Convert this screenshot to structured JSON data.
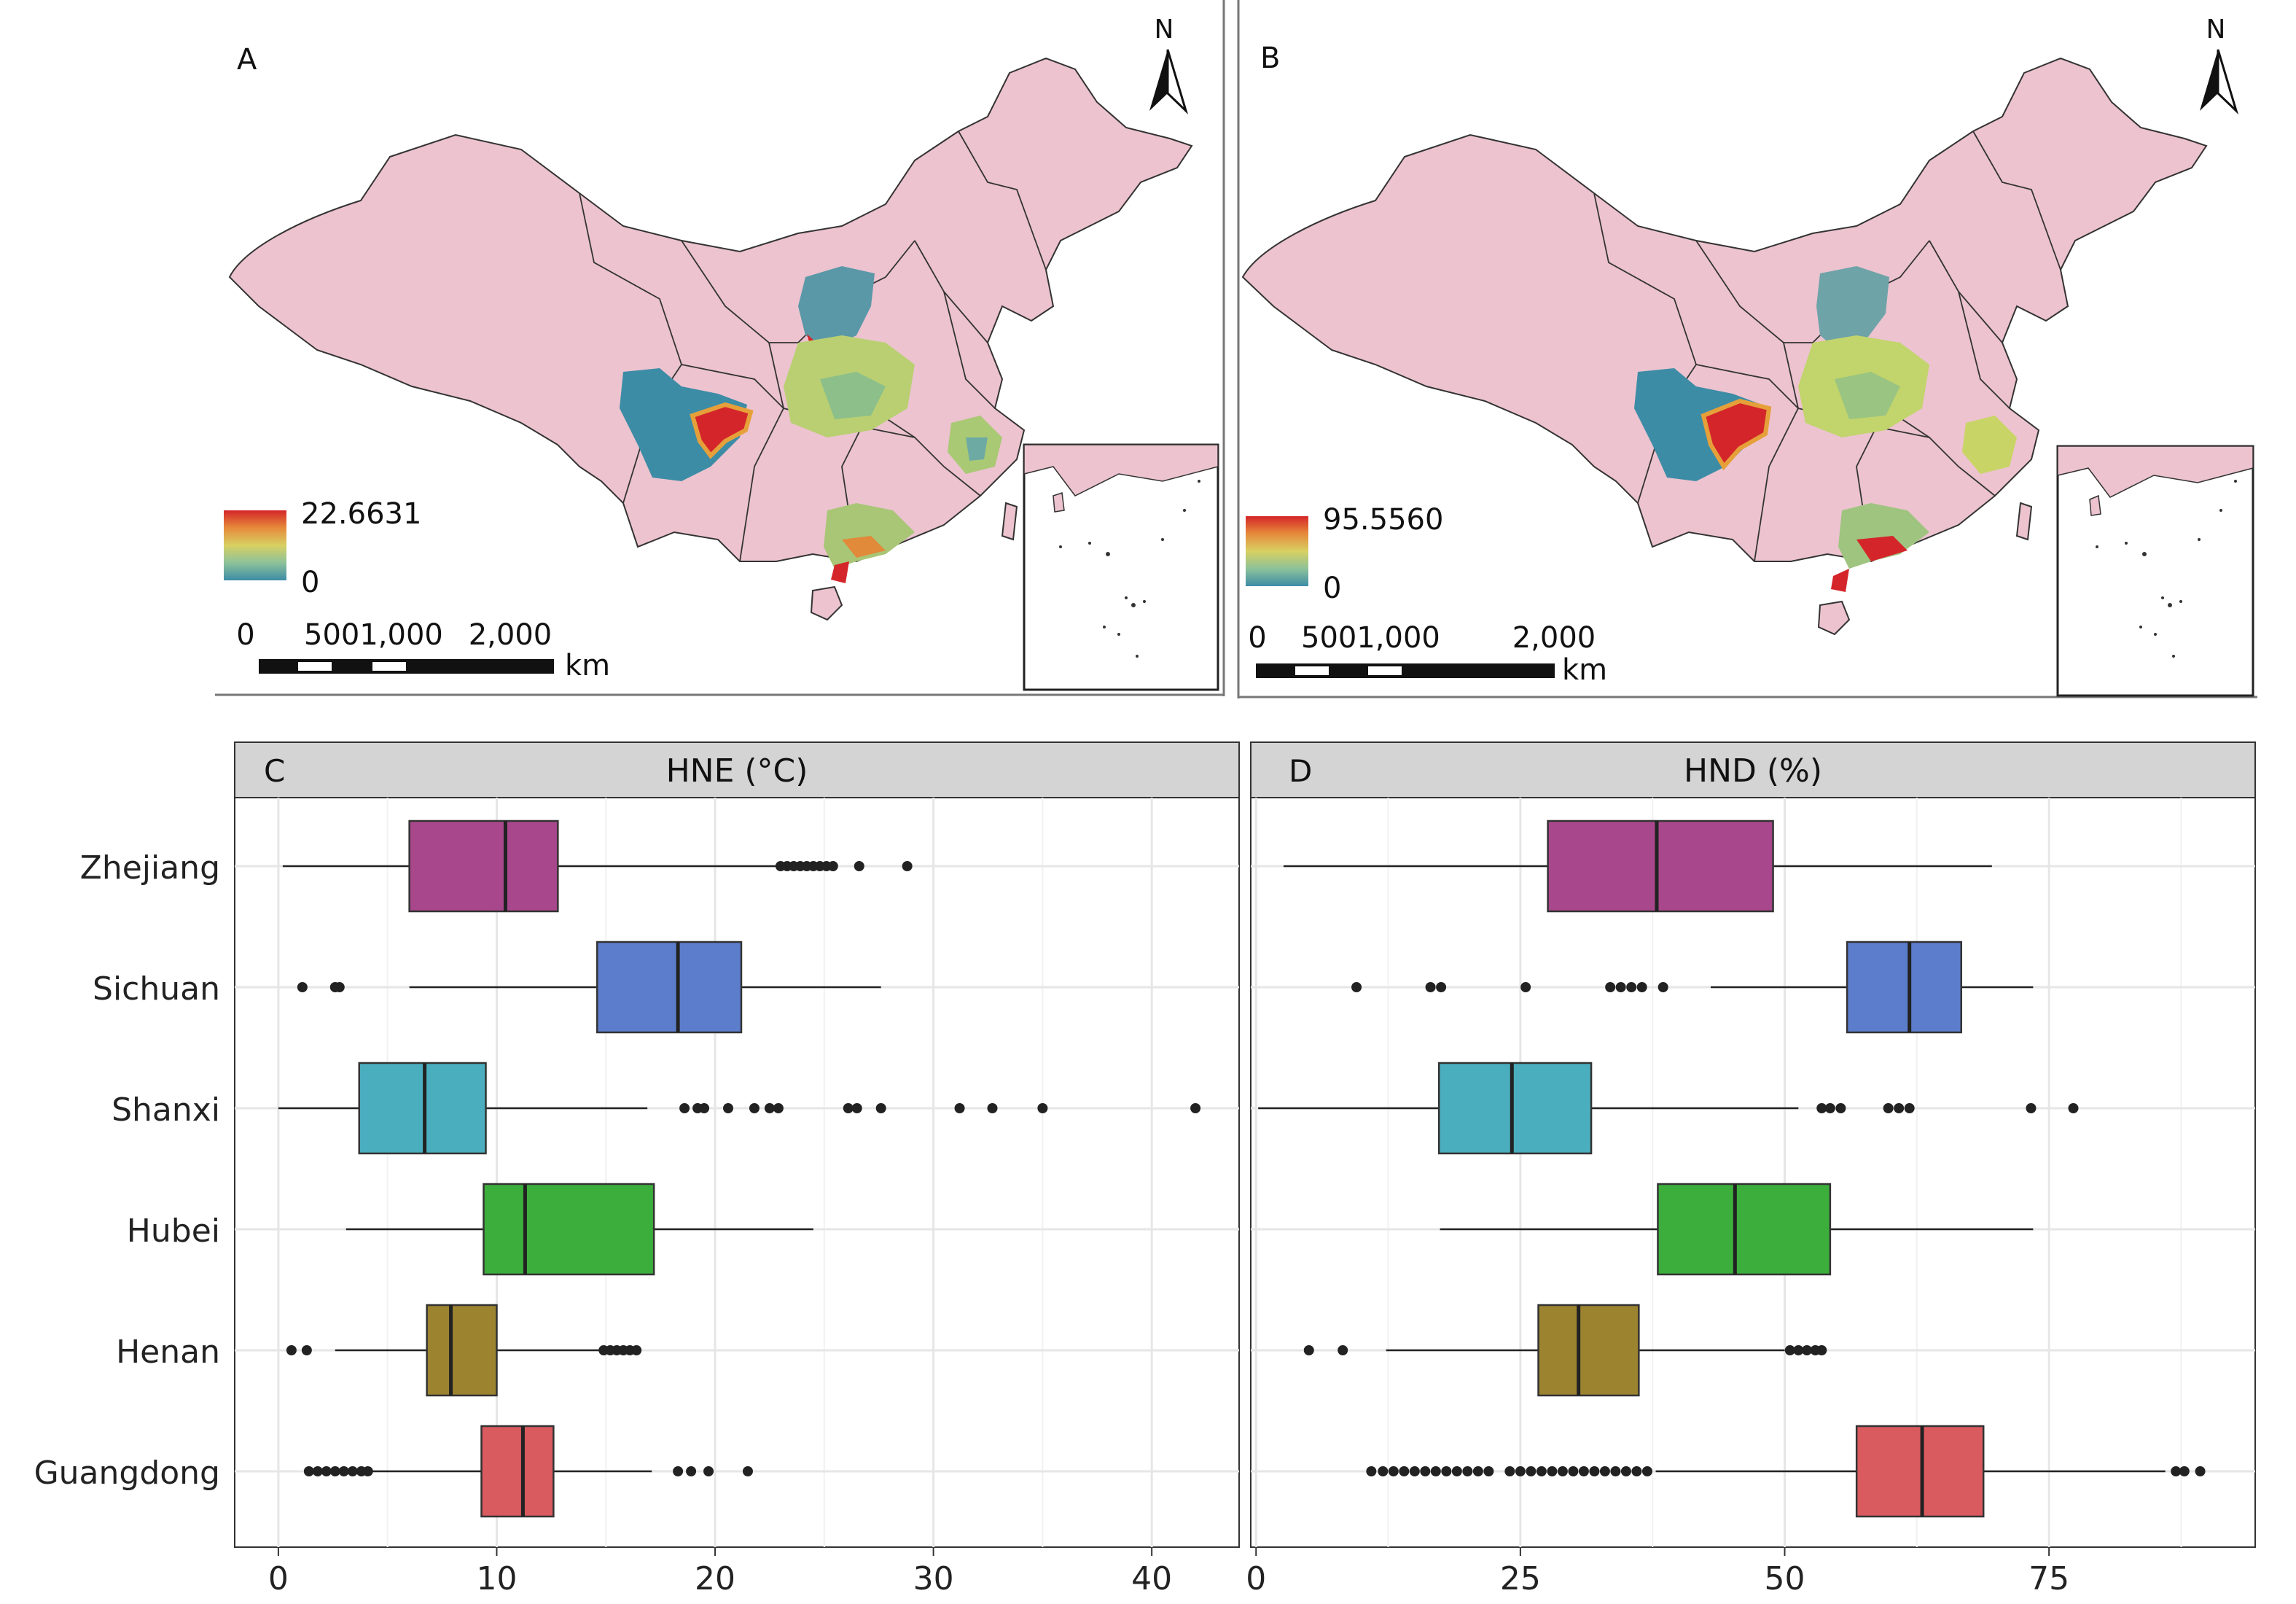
{
  "map_a": {
    "panel_label": "A",
    "legend_max": "22.6631",
    "legend_min": "0",
    "north_label": "N",
    "scale_labels": [
      "0",
      "5001,000",
      "2,000"
    ],
    "scale_unit": "km"
  },
  "map_b": {
    "panel_label": "B",
    "legend_max": "95.5560",
    "legend_min": "0",
    "north_label": "N",
    "scale_labels": [
      "0",
      "5001,000",
      "2,000"
    ],
    "scale_unit": "km"
  },
  "colors": {
    "map_land": "#ecc3cf",
    "map_border": "#333333",
    "heat_low": "#3d8ca6",
    "heat_mid": "#c8d86a",
    "heat_high": "#d4262a",
    "strip_bg": "#d4d4d4",
    "grid": "#e6e6e6"
  },
  "chart_data": [
    {
      "type": "boxplot",
      "panel_label": "C",
      "title": "HNE (°C)",
      "xlim": [
        -2,
        44
      ],
      "x_ticks": [
        0,
        10,
        20,
        30,
        40
      ],
      "grid": true,
      "categories": [
        "Zhejiang",
        "Sichuan",
        "Shanxi",
        "Hubei",
        "Henan",
        "Guangdong"
      ],
      "boxes": [
        {
          "name": "Zhejiang",
          "color": "#a8478b",
          "min": 0.2,
          "q1": 6.0,
          "median": 10.4,
          "q3": 12.8,
          "max": 22.8,
          "outliers": [
            23.0,
            23.3,
            23.6,
            23.9,
            24.2,
            24.5,
            24.8,
            25.1,
            25.4,
            26.6,
            28.8
          ]
        },
        {
          "name": "Sichuan",
          "color": "#5c7dcc",
          "min": 6.0,
          "q1": 14.6,
          "median": 18.3,
          "q3": 21.2,
          "max": 27.6,
          "outliers": [
            1.1,
            2.6,
            2.8
          ]
        },
        {
          "name": "Shanxi",
          "color": "#4aaebe",
          "min": 0.0,
          "q1": 3.7,
          "median": 6.7,
          "q3": 9.5,
          "max": 16.9,
          "outliers": [
            18.6,
            19.2,
            19.5,
            20.6,
            21.8,
            22.5,
            22.9,
            26.1,
            26.5,
            27.6,
            31.2,
            32.7,
            35.0,
            42.0
          ]
        },
        {
          "name": "Hubei",
          "color": "#3cae3c",
          "min": 3.1,
          "q1": 9.4,
          "median": 11.3,
          "q3": 17.2,
          "max": 24.5,
          "outliers": []
        },
        {
          "name": "Henan",
          "color": "#9c8330",
          "min": 2.6,
          "q1": 6.8,
          "median": 7.9,
          "q3": 10.0,
          "max": 14.7,
          "outliers": [
            0.6,
            1.3,
            14.9,
            15.2,
            15.5,
            15.8,
            16.1,
            16.4
          ]
        },
        {
          "name": "Guangdong",
          "color": "#d95a5f",
          "min": 4.3,
          "q1": 9.3,
          "median": 11.2,
          "q3": 12.6,
          "max": 17.1,
          "outliers": [
            1.4,
            1.8,
            2.2,
            2.6,
            3.0,
            3.4,
            3.8,
            4.1,
            18.3,
            18.9,
            19.7,
            21.5
          ]
        }
      ]
    },
    {
      "type": "boxplot",
      "panel_label": "D",
      "title": "HND (%)",
      "xlim": [
        -0.5,
        94.5
      ],
      "x_ticks": [
        0,
        25,
        50,
        75
      ],
      "grid": true,
      "categories": [
        "Zhejiang",
        "Sichuan",
        "Shanxi",
        "Hubei",
        "Henan",
        "Guangdong"
      ],
      "boxes": [
        {
          "name": "Zhejiang",
          "color": "#a8478b",
          "min": 2.6,
          "q1": 27.6,
          "median": 37.9,
          "q3": 48.9,
          "max": 69.6,
          "outliers": []
        },
        {
          "name": "Sichuan",
          "color": "#5c7dcc",
          "min": 43.0,
          "q1": 55.9,
          "median": 61.8,
          "q3": 66.7,
          "max": 73.5,
          "outliers": [
            9.5,
            16.5,
            17.5,
            25.5,
            33.5,
            34.5,
            35.5,
            36.5,
            38.5
          ]
        },
        {
          "name": "Shanxi",
          "color": "#4aaebe",
          "min": 0.2,
          "q1": 17.3,
          "median": 24.2,
          "q3": 31.7,
          "max": 51.3,
          "outliers": [
            53.5,
            54.3,
            55.3,
            59.8,
            60.8,
            61.8,
            73.3,
            77.3
          ]
        },
        {
          "name": "Hubei",
          "color": "#3cae3c",
          "min": 17.4,
          "q1": 38.0,
          "median": 45.3,
          "q3": 54.3,
          "max": 73.5,
          "outliers": []
        },
        {
          "name": "Henan",
          "color": "#9c8330",
          "min": 12.3,
          "q1": 26.7,
          "median": 30.5,
          "q3": 36.2,
          "max": 50.0,
          "outliers": [
            5.0,
            8.2,
            50.5,
            51.3,
            52.1,
            52.9,
            53.5
          ]
        },
        {
          "name": "Guangdong",
          "color": "#d95a5f",
          "min": 37.8,
          "q1": 56.8,
          "median": 63.0,
          "q3": 68.8,
          "max": 86.0,
          "outliers": [
            10.9,
            12.0,
            13.0,
            14.0,
            15.0,
            16.0,
            17.0,
            18.0,
            19.0,
            20.0,
            21.0,
            22.0,
            24.0,
            25.0,
            26.0,
            27.0,
            28.0,
            29.0,
            30.0,
            31.0,
            32.0,
            33.0,
            34.0,
            35.0,
            36.0,
            37.0,
            87.0,
            87.8,
            89.3
          ]
        }
      ]
    }
  ]
}
